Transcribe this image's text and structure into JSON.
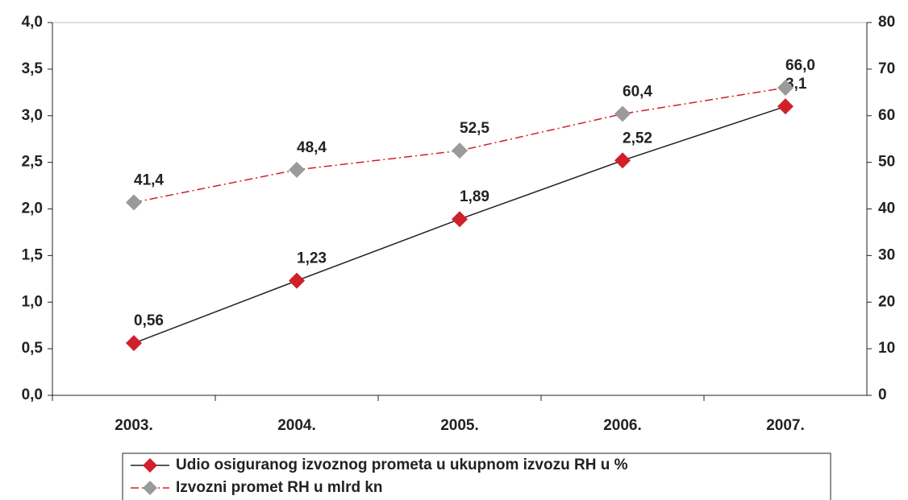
{
  "chart_data": {
    "type": "line",
    "categories": [
      "2003.",
      "2004.",
      "2005.",
      "2006.",
      "2007."
    ],
    "series": [
      {
        "name": "Udio osiguranog izvoznog prometa u ukupnom izvozu RH u %",
        "color": "#d0202a",
        "line_color": "#222222",
        "values": [
          0.56,
          1.23,
          1.89,
          2.52,
          3.1
        ],
        "value_labels": [
          "0,56",
          "1,23",
          "1,89",
          "2,52",
          "3,1"
        ]
      },
      {
        "name": "Izvozni promet RH u mlrd kn",
        "color": "#9a9a9a",
        "line_color": "#d0202a",
        "axis": "y2",
        "values": [
          41.4,
          48.4,
          52.5,
          60.4,
          66.0
        ],
        "value_labels": [
          "41,4",
          "48,4",
          "52,5",
          "60,4",
          "66,0"
        ]
      }
    ],
    "ylim": [
      0,
      4
    ],
    "yticks": [
      {
        "value": 0,
        "label": "0,0"
      },
      {
        "value": 0.5,
        "label": "0,5"
      },
      {
        "value": 1,
        "label": "1,0"
      },
      {
        "value": 1.5,
        "label": "1,5"
      },
      {
        "value": 2,
        "label": "2,0"
      },
      {
        "value": 2.5,
        "label": "2,5"
      },
      {
        "value": 3,
        "label": "3,0"
      },
      {
        "value": 3.5,
        "label": "3,5"
      },
      {
        "value": 4,
        "label": "4,0"
      }
    ],
    "y2lim": [
      0,
      80
    ],
    "y2ticks": [
      0,
      10,
      20,
      30,
      40,
      50,
      60,
      70,
      80
    ],
    "legend": "bottom"
  }
}
